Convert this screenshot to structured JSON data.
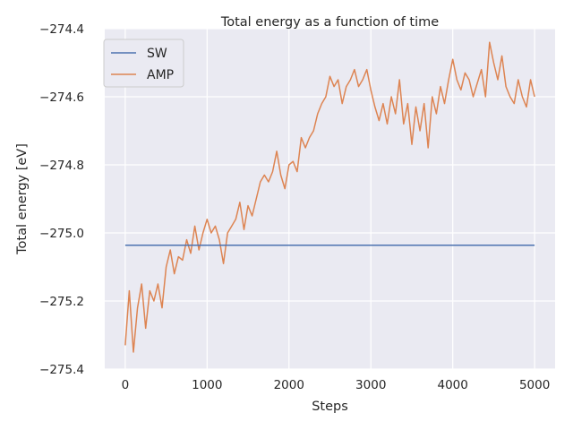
{
  "chart_data": {
    "type": "line",
    "title": "Total energy as a function of time",
    "xlabel": "Steps",
    "ylabel": "Total energy [eV]",
    "xlim": [
      -250,
      5250
    ],
    "ylim": [
      -275.4,
      -274.4
    ],
    "xticks": [
      0,
      1000,
      2000,
      3000,
      4000,
      5000
    ],
    "yticks": [
      -275.4,
      -275.2,
      -275.0,
      -274.8,
      -274.6,
      -274.4
    ],
    "grid": true,
    "legend_position": "upper-left",
    "series": [
      {
        "name": "SW",
        "color": "#4c72b0",
        "x": [
          0,
          5000
        ],
        "y": [
          -275.036,
          -275.036
        ]
      },
      {
        "name": "AMP",
        "color": "#dd8452",
        "x": [
          0,
          50,
          100,
          150,
          200,
          250,
          300,
          350,
          400,
          450,
          500,
          550,
          600,
          650,
          700,
          750,
          800,
          850,
          900,
          950,
          1000,
          1050,
          1100,
          1150,
          1200,
          1250,
          1300,
          1350,
          1400,
          1450,
          1500,
          1550,
          1600,
          1650,
          1700,
          1750,
          1800,
          1850,
          1900,
          1950,
          2000,
          2050,
          2100,
          2150,
          2200,
          2250,
          2300,
          2350,
          2400,
          2450,
          2500,
          2550,
          2600,
          2650,
          2700,
          2750,
          2800,
          2850,
          2900,
          2950,
          3000,
          3050,
          3100,
          3150,
          3200,
          3250,
          3300,
          3350,
          3400,
          3450,
          3500,
          3550,
          3600,
          3650,
          3700,
          3750,
          3800,
          3850,
          3900,
          3950,
          4000,
          4050,
          4100,
          4150,
          4200,
          4250,
          4300,
          4350,
          4400,
          4450,
          4500,
          4550,
          4600,
          4650,
          4700,
          4750,
          4800,
          4850,
          4900,
          4950,
          5000
        ],
        "y": [
          -275.33,
          -275.17,
          -275.35,
          -275.22,
          -275.15,
          -275.28,
          -275.17,
          -275.2,
          -275.15,
          -275.22,
          -275.1,
          -275.05,
          -275.12,
          -275.07,
          -275.08,
          -275.02,
          -275.06,
          -274.98,
          -275.05,
          -275.0,
          -274.96,
          -275.0,
          -274.98,
          -275.02,
          -275.09,
          -275.0,
          -274.98,
          -274.96,
          -274.91,
          -274.99,
          -274.92,
          -274.95,
          -274.9,
          -274.85,
          -274.83,
          -274.85,
          -274.82,
          -274.76,
          -274.83,
          -274.87,
          -274.8,
          -274.79,
          -274.82,
          -274.72,
          -274.75,
          -274.72,
          -274.7,
          -274.65,
          -274.62,
          -274.6,
          -274.54,
          -274.57,
          -274.55,
          -274.62,
          -274.57,
          -274.55,
          -274.52,
          -274.57,
          -274.55,
          -274.52,
          -274.58,
          -274.63,
          -274.67,
          -274.62,
          -274.68,
          -274.6,
          -274.65,
          -274.55,
          -274.68,
          -274.62,
          -274.74,
          -274.63,
          -274.7,
          -274.62,
          -274.75,
          -274.6,
          -274.65,
          -274.57,
          -274.62,
          -274.55,
          -274.49,
          -274.55,
          -274.58,
          -274.53,
          -274.55,
          -274.6,
          -274.56,
          -274.52,
          -274.6,
          -274.44,
          -274.5,
          -274.55,
          -274.48,
          -274.57,
          -274.6,
          -274.62,
          -274.55,
          -274.6,
          -274.63,
          -274.55,
          -274.6
        ]
      }
    ]
  }
}
